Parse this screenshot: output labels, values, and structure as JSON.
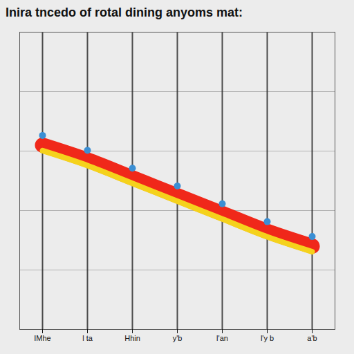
{
  "chart_data": {
    "type": "line",
    "title": "Inira tncedo of rotal dining anyoms mat:",
    "categories": [
      "IMhe",
      "l ta",
      "Hhin",
      "y'b",
      "l'an",
      "l'y b",
      "a'b"
    ],
    "values": [
      62,
      57,
      51,
      45,
      39,
      33,
      28
    ],
    "color": "#f0281a",
    "ylim": [
      0,
      100
    ],
    "yticks": [
      0,
      20,
      40,
      60,
      80,
      100
    ],
    "grid": true,
    "tick_labels": "x"
  }
}
